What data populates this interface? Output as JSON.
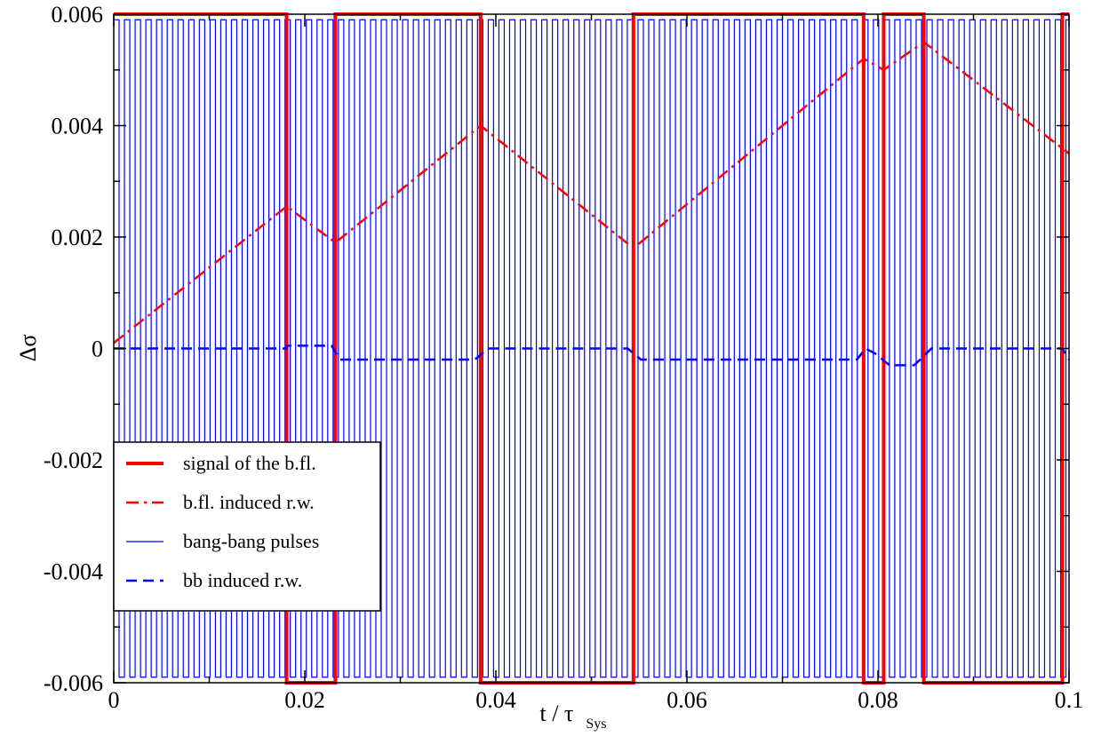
{
  "chart_data": {
    "type": "line",
    "title": "",
    "xlabel": {
      "main": "t / τ",
      "sub": "Sys"
    },
    "ylabel": "Δσ",
    "xlim": [
      0,
      0.1
    ],
    "ylim": [
      -0.006,
      0.006
    ],
    "xticks": [
      0,
      0.02,
      0.04,
      0.06,
      0.08,
      0.1
    ],
    "xtick_labels": [
      "0",
      "0.02",
      "0.04",
      "0.06",
      "0.08",
      "0.1"
    ],
    "yticks": [
      -0.006,
      -0.004,
      -0.002,
      0,
      0.002,
      0.004,
      0.006
    ],
    "ytick_labels": [
      "-0.006",
      "-0.004",
      "-0.002",
      "0",
      "0.002",
      "0.004",
      "0.006"
    ],
    "grid": false,
    "legend_position": "lower-left",
    "series": [
      {
        "name": "signal of the b.fl.",
        "style": "solid-thick",
        "color": "#ff0000",
        "kind": "step",
        "x": [
          0,
          0.0181,
          0.0181,
          0.0232,
          0.0232,
          0.0384,
          0.0384,
          0.0544,
          0.0544,
          0.0785,
          0.0785,
          0.0806,
          0.0806,
          0.0848,
          0.0848,
          0.0993,
          0.0993,
          0.1
        ],
        "y": [
          0.006,
          0.006,
          -0.006,
          -0.006,
          0.006,
          0.006,
          -0.006,
          -0.006,
          0.006,
          0.006,
          -0.006,
          -0.006,
          0.006,
          0.006,
          -0.006,
          -0.006,
          0.006,
          0.006
        ]
      },
      {
        "name": "b.fl. induced r.w.",
        "style": "dash-dot",
        "color": "#ff0000",
        "kind": "line",
        "x": [
          0,
          0.0181,
          0.0232,
          0.0384,
          0.0544,
          0.0785,
          0.0806,
          0.0848,
          0.1
        ],
        "y": [
          0.0001,
          0.00255,
          0.0019,
          0.004,
          0.0018,
          0.0052,
          0.005,
          0.0055,
          0.0035
        ]
      },
      {
        "name": "bang-bang pulses",
        "style": "solid-thin",
        "color": "#0000ff",
        "kind": "square-wave",
        "period": 0.00112,
        "amplitude": 0.0059,
        "range": [
          0,
          0.1
        ]
      },
      {
        "name": "bb induced r.w.",
        "style": "dashed",
        "color": "#0000ff",
        "kind": "line",
        "x": [
          0,
          0.0181,
          0.0182,
          0.0228,
          0.0237,
          0.0378,
          0.0392,
          0.0538,
          0.0552,
          0.0778,
          0.0787,
          0.0798,
          0.0812,
          0.0838,
          0.0856,
          0.0993,
          0.1
        ],
        "y": [
          0,
          0,
          5e-05,
          5e-05,
          -0.0002,
          -0.0002,
          0,
          0,
          -0.0002,
          -0.0002,
          0,
          -0.0001,
          -0.0003,
          -0.0003,
          0,
          0,
          -0.0002
        ]
      }
    ]
  }
}
